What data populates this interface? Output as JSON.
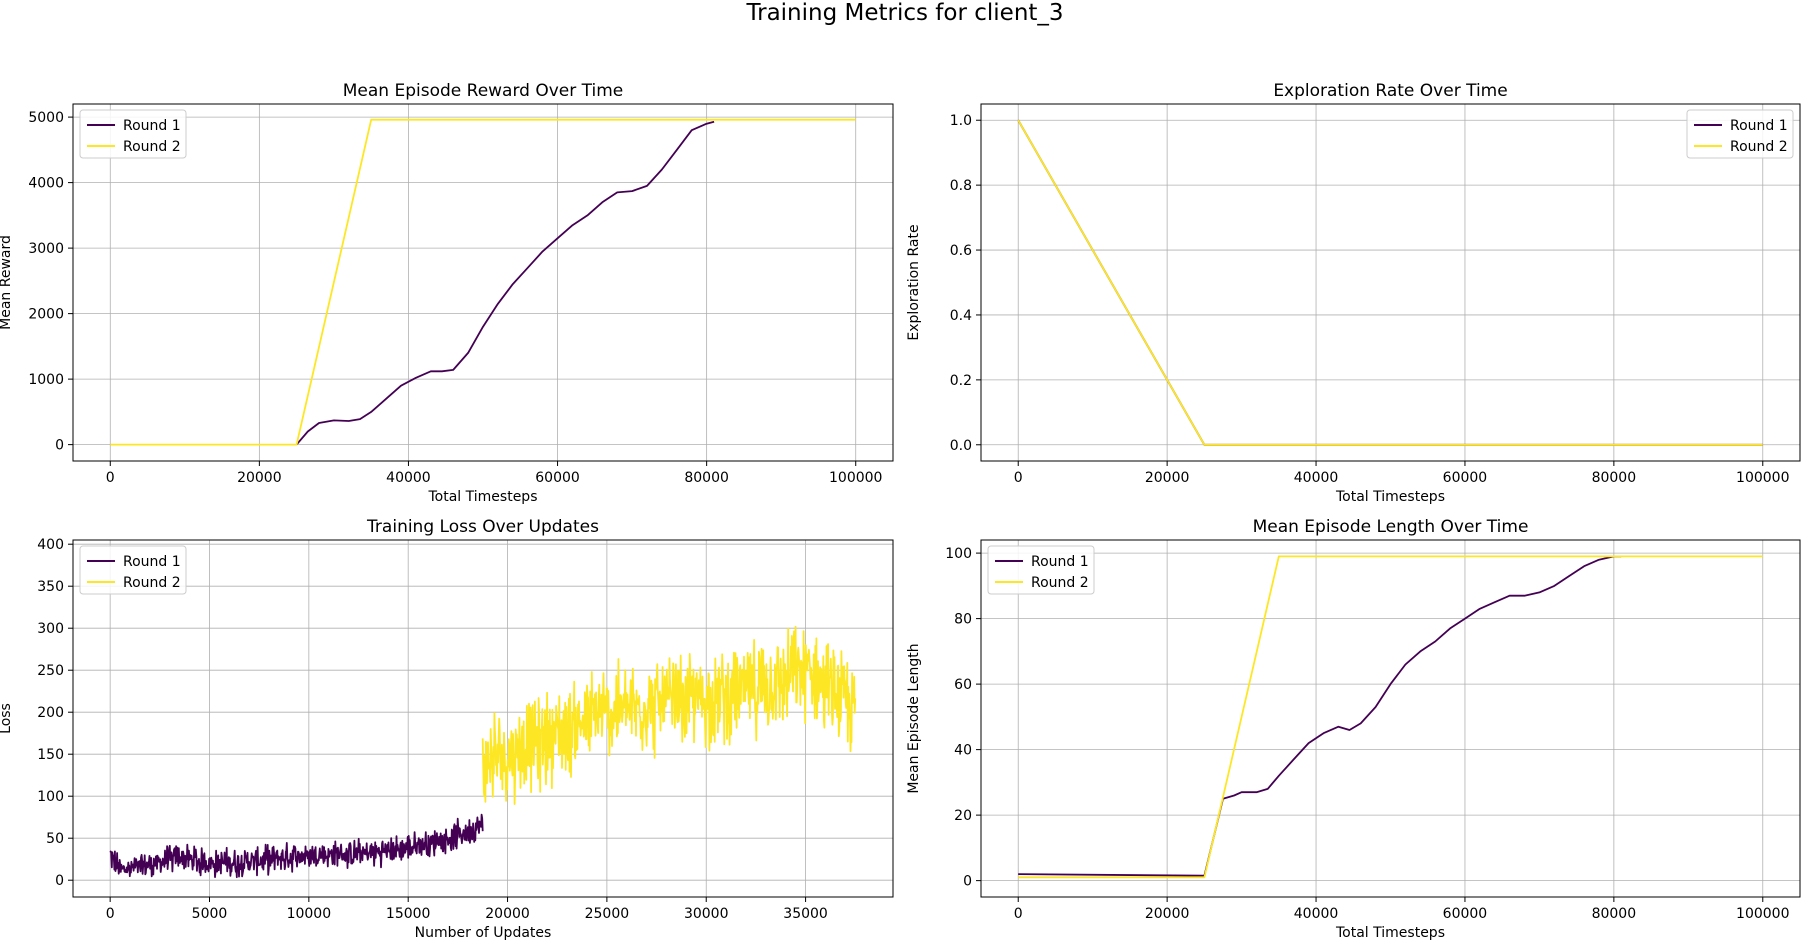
{
  "figure": {
    "suptitle": "Training Metrics for client_3"
  },
  "colors": {
    "round1": "#440154",
    "round2": "#fde725",
    "grid": "#b0b0b0",
    "axes": "#000000"
  },
  "chart_data": [
    {
      "id": "reward",
      "type": "line",
      "title": "Mean Episode Reward Over Time",
      "xlabel": "Total Timesteps",
      "ylabel": "Mean Reward",
      "xlim": [
        -5000,
        105000
      ],
      "ylim": [
        -250,
        5200
      ],
      "xticks": [
        0,
        20000,
        40000,
        60000,
        80000,
        100000
      ],
      "xticklabels": [
        "0",
        "20000",
        "40000",
        "60000",
        "80000",
        "100000"
      ],
      "yticks": [
        0,
        1000,
        2000,
        3000,
        4000,
        5000
      ],
      "yticklabels": [
        "0",
        "1000",
        "2000",
        "3000",
        "4000",
        "5000"
      ],
      "grid": true,
      "legend": "upper left",
      "series": [
        {
          "name": "Round 1",
          "color": "#440154",
          "x": [
            25000,
            26500,
            28000,
            30000,
            32000,
            33500,
            35000,
            37000,
            39000,
            41000,
            43000,
            44500,
            46000,
            48000,
            50000,
            52000,
            54000,
            56000,
            58000,
            60000,
            62000,
            64000,
            66000,
            68000,
            70000,
            72000,
            74000,
            76000,
            78000,
            80000,
            81000
          ],
          "y": [
            0,
            200,
            330,
            370,
            360,
            390,
            500,
            700,
            900,
            1020,
            1120,
            1120,
            1140,
            1400,
            1800,
            2150,
            2450,
            2700,
            2950,
            3150,
            3350,
            3500,
            3700,
            3850,
            3870,
            3950,
            4200,
            4500,
            4800,
            4900,
            4930
          ]
        },
        {
          "name": "Round 2",
          "color": "#fde725",
          "x": [
            0,
            25000,
            35000,
            100000
          ],
          "y": [
            0,
            0,
            4960,
            4960
          ]
        }
      ]
    },
    {
      "id": "exploration",
      "type": "line",
      "title": "Exploration Rate Over Time",
      "xlabel": "Total Timesteps",
      "ylabel": "Exploration Rate",
      "xlim": [
        -5000,
        105000
      ],
      "ylim": [
        -0.05,
        1.05
      ],
      "xticks": [
        0,
        20000,
        40000,
        60000,
        80000,
        100000
      ],
      "xticklabels": [
        "0",
        "20000",
        "40000",
        "60000",
        "80000",
        "100000"
      ],
      "yticks": [
        0.0,
        0.2,
        0.4,
        0.6,
        0.8,
        1.0
      ],
      "yticklabels": [
        "0.0",
        "0.2",
        "0.4",
        "0.6",
        "0.8",
        "1.0"
      ],
      "grid": true,
      "legend": "upper right",
      "series": [
        {
          "name": "Round 1",
          "color": "#440154",
          "x": [
            0,
            25000,
            100000
          ],
          "y": [
            1.0,
            0.0,
            0.0
          ]
        },
        {
          "name": "Round 2",
          "color": "#fde725",
          "x": [
            0,
            25000,
            100000
          ],
          "y": [
            1.0,
            0.0,
            0.0
          ]
        }
      ]
    },
    {
      "id": "loss",
      "type": "line",
      "title": "Training Loss Over Updates",
      "xlabel": "Number of Updates",
      "ylabel": "Loss",
      "xlim": [
        -1870,
        39400
      ],
      "ylim": [
        -20,
        405
      ],
      "xticks": [
        0,
        5000,
        10000,
        15000,
        20000,
        25000,
        30000,
        35000
      ],
      "xticklabels": [
        "0",
        "5000",
        "10000",
        "15000",
        "20000",
        "25000",
        "30000",
        "35000"
      ],
      "yticks": [
        0,
        50,
        100,
        150,
        200,
        250,
        300,
        350,
        400
      ],
      "yticklabels": [
        "0",
        "50",
        "100",
        "150",
        "200",
        "250",
        "300",
        "350",
        "400"
      ],
      "grid": true,
      "legend": "upper left",
      "series": [
        {
          "name": "Round 1",
          "color": "#440154",
          "x_range": [
            0,
            18750
          ],
          "trend_x": [
            0,
            500,
            2000,
            3500,
            5000,
            7000,
            9000,
            11000,
            13000,
            15000,
            17000,
            18750
          ],
          "trend_y": [
            30,
            12,
            18,
            28,
            20,
            22,
            28,
            30,
            32,
            38,
            50,
            65
          ],
          "noise": 14
        },
        {
          "name": "Round 2",
          "color": "#fde725",
          "x_range": [
            18750,
            37500
          ],
          "trend_x": [
            18750,
            20000,
            22000,
            25000,
            28000,
            30000,
            33000,
            35000,
            37500
          ],
          "trend_y": [
            140,
            150,
            170,
            200,
            210,
            215,
            230,
            250,
            200
          ],
          "noise": 48
        }
      ]
    },
    {
      "id": "length",
      "type": "line",
      "title": "Mean Episode Length Over Time",
      "xlabel": "Total Timesteps",
      "ylabel": "Mean Episode Length",
      "xlim": [
        -5000,
        105000
      ],
      "ylim": [
        -5,
        104
      ],
      "xticks": [
        0,
        20000,
        40000,
        60000,
        80000,
        100000
      ],
      "xticklabels": [
        "0",
        "20000",
        "40000",
        "60000",
        "80000",
        "100000"
      ],
      "yticks": [
        0,
        20,
        40,
        60,
        80,
        100
      ],
      "yticklabels": [
        "0",
        "20",
        "40",
        "60",
        "80",
        "100"
      ],
      "grid": true,
      "legend": "upper left",
      "series": [
        {
          "name": "Round 1",
          "color": "#440154",
          "x": [
            0,
            25000,
            27500,
            29000,
            30000,
            32000,
            33500,
            35000,
            37000,
            39000,
            41000,
            43000,
            44500,
            46000,
            48000,
            50000,
            52000,
            54000,
            56000,
            58000,
            60000,
            62000,
            64000,
            66000,
            68000,
            70000,
            72000,
            74000,
            76000,
            78000,
            80000,
            81000
          ],
          "y": [
            2,
            1.5,
            25,
            26,
            27,
            27,
            28,
            32,
            37,
            42,
            45,
            47,
            46,
            48,
            53,
            60,
            66,
            70,
            73,
            77,
            80,
            83,
            85,
            87,
            87,
            88,
            90,
            93,
            96,
            98,
            99,
            99
          ]
        },
        {
          "name": "Round 2",
          "color": "#fde725",
          "x": [
            0,
            25000,
            35000,
            100000
          ],
          "y": [
            1,
            1,
            99,
            99
          ]
        }
      ]
    }
  ]
}
